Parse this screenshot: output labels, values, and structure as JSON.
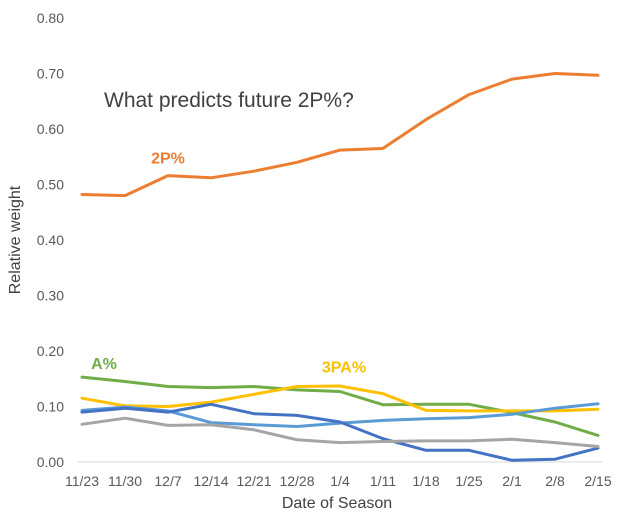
{
  "chart_data": {
    "type": "line",
    "title": "What predicts future 2P%?",
    "xlabel": "Date of Season",
    "ylabel": "Relative weight",
    "categories": [
      "11/23",
      "11/30",
      "12/7",
      "12/14",
      "12/21",
      "12/28",
      "1/4",
      "1/11",
      "1/18",
      "1/25",
      "2/1",
      "2/8",
      "2/15"
    ],
    "ylim": [
      0,
      0.8
    ],
    "yticks": [
      "0.00",
      "0.10",
      "0.20",
      "0.30",
      "0.40",
      "0.50",
      "0.60",
      "0.70",
      "0.80"
    ],
    "grid": false,
    "series": [
      {
        "name": "2P%",
        "color": "#ED7D31",
        "values": [
          0.482,
          0.48,
          0.516,
          0.512,
          0.524,
          0.54,
          0.562,
          0.565,
          0.617,
          0.662,
          0.69,
          0.7,
          0.697
        ]
      },
      {
        "name": "A%",
        "color": "#70AD47",
        "values": [
          0.153,
          0.145,
          0.136,
          0.134,
          0.136,
          0.13,
          0.127,
          0.103,
          0.104,
          0.104,
          0.089,
          0.072,
          0.048
        ]
      },
      {
        "name": "3PA%",
        "color": "#FFC000",
        "values": [
          0.115,
          0.101,
          0.1,
          0.108,
          0.122,
          0.136,
          0.137,
          0.123,
          0.093,
          0.092,
          0.092,
          0.092,
          0.095
        ]
      },
      {
        "name": "",
        "color": "#5B9BD5",
        "values": [
          0.093,
          0.099,
          0.092,
          0.071,
          0.067,
          0.064,
          0.07,
          0.075,
          0.078,
          0.08,
          0.086,
          0.097,
          0.105
        ]
      },
      {
        "name": "",
        "color": "#4472C4",
        "values": [
          0.09,
          0.097,
          0.09,
          0.104,
          0.087,
          0.084,
          0.072,
          0.042,
          0.021,
          0.021,
          0.003,
          0.005,
          0.025
        ]
      },
      {
        "name": "",
        "color": "#A5A5A5",
        "values": [
          0.068,
          0.079,
          0.066,
          0.067,
          0.058,
          0.04,
          0.035,
          0.037,
          0.038,
          0.038,
          0.041,
          0.035,
          0.028
        ]
      }
    ]
  }
}
